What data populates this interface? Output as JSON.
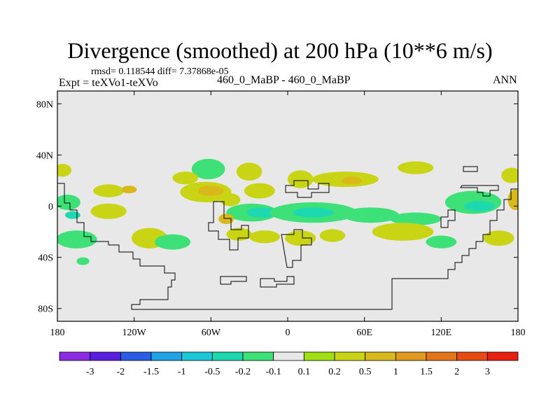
{
  "header": {
    "title": "Divergence (smoothed) at 200 hPa (10**6 m/s)",
    "stats": "rmsd= 0.118544  diff= 7.37868e-05",
    "experiment": "Expt = teXVo1-teXVo",
    "case": "460_0_MaBP - 460_0_MaBP",
    "season": "ANN"
  },
  "chart_data": {
    "type": "heatmap",
    "title": "Divergence (smoothed) at 200 hPa (10**6 m/s)",
    "xlabel": "",
    "ylabel": "",
    "xlim": [
      -180,
      180
    ],
    "ylim": [
      -90,
      90
    ],
    "x_ticks": [
      {
        "value": -180,
        "label": "180"
      },
      {
        "value": -120,
        "label": "120W"
      },
      {
        "value": -60,
        "label": "60W"
      },
      {
        "value": 0,
        "label": "0"
      },
      {
        "value": 60,
        "label": "60E"
      },
      {
        "value": 120,
        "label": "120E"
      },
      {
        "value": 180,
        "label": "180"
      }
    ],
    "y_ticks": [
      {
        "value": 80,
        "label": "80N"
      },
      {
        "value": 40,
        "label": "40N"
      },
      {
        "value": 0,
        "label": "0"
      },
      {
        "value": -40,
        "label": "40S"
      },
      {
        "value": -80,
        "label": "80S"
      }
    ],
    "colorbar": {
      "labels": [
        "-3",
        "-2",
        "-1.5",
        "-1",
        "-0.5",
        "-0.2",
        "-0.1",
        "0.1",
        "0.2",
        "0.5",
        "1",
        "1.5",
        "2",
        "3"
      ],
      "colors": [
        "#8a2be2",
        "#5a1ee0",
        "#2a5ce6",
        "#1fa3e6",
        "#1cc8d8",
        "#1ed8b0",
        "#3ee078",
        "#e8e8e8",
        "#9ee012",
        "#c8d414",
        "#d8b81a",
        "#e09a20",
        "#e47418",
        "#e84a14",
        "#e82010"
      ]
    },
    "fields": [
      {
        "lon": -176,
        "lat": 28,
        "rx": 7,
        "ry": 5,
        "value": 0.2
      },
      {
        "lon": -172,
        "lat": 3,
        "rx": 10,
        "ry": 6,
        "value": -0.2
      },
      {
        "lon": -168,
        "lat": -7,
        "rx": 6,
        "ry": 3,
        "value": -0.5
      },
      {
        "lon": -140,
        "lat": 12,
        "rx": 12,
        "ry": 5,
        "value": 0.2
      },
      {
        "lon": -124,
        "lat": 13,
        "rx": 6,
        "ry": 3,
        "value": 0.5
      },
      {
        "lon": -140,
        "lat": -4,
        "rx": 14,
        "ry": 6,
        "value": 0.2
      },
      {
        "lon": -165,
        "lat": -26,
        "rx": 16,
        "ry": 7,
        "value": -0.2
      },
      {
        "lon": -160,
        "lat": -43,
        "rx": 5,
        "ry": 3,
        "value": -0.2
      },
      {
        "lon": -108,
        "lat": -25,
        "rx": 14,
        "ry": 8,
        "value": 0.2
      },
      {
        "lon": -90,
        "lat": -28,
        "rx": 14,
        "ry": 6,
        "value": -0.2
      },
      {
        "lon": -62,
        "lat": 29,
        "rx": 13,
        "ry": 8,
        "value": -0.2
      },
      {
        "lon": -80,
        "lat": 22,
        "rx": 10,
        "ry": 5,
        "value": 0.2
      },
      {
        "lon": -64,
        "lat": 11,
        "rx": 20,
        "ry": 8,
        "value": 0.2
      },
      {
        "lon": -60,
        "lat": 12,
        "rx": 10,
        "ry": 4,
        "value": 0.5
      },
      {
        "lon": -30,
        "lat": 27,
        "rx": 10,
        "ry": 7,
        "value": 0.2
      },
      {
        "lon": -22,
        "lat": 12,
        "rx": 12,
        "ry": 6,
        "value": 0.2
      },
      {
        "lon": -45,
        "lat": 5,
        "rx": 8,
        "ry": 5,
        "value": 0.2
      },
      {
        "lon": -28,
        "lat": -5,
        "rx": 20,
        "ry": 7,
        "value": -0.2
      },
      {
        "lon": -20,
        "lat": -5,
        "rx": 12,
        "ry": 4,
        "value": -0.5
      },
      {
        "lon": -48,
        "lat": -10,
        "rx": 6,
        "ry": 4,
        "value": 0.5
      },
      {
        "lon": -38,
        "lat": -22,
        "rx": 10,
        "ry": 5,
        "value": 0.2
      },
      {
        "lon": -18,
        "lat": -24,
        "rx": 12,
        "ry": 5,
        "value": 0.2
      },
      {
        "lon": 10,
        "lat": 21,
        "rx": 10,
        "ry": 7,
        "value": 0.2
      },
      {
        "lon": 45,
        "lat": 21,
        "rx": 26,
        "ry": 6,
        "value": 0.2
      },
      {
        "lon": 50,
        "lat": 20,
        "rx": 8,
        "ry": 3,
        "value": 0.5
      },
      {
        "lon": 20,
        "lat": -5,
        "rx": 34,
        "ry": 8,
        "value": -0.2
      },
      {
        "lon": 20,
        "lat": -5,
        "rx": 16,
        "ry": 4,
        "value": -0.5
      },
      {
        "lon": 65,
        "lat": -7,
        "rx": 22,
        "ry": 6,
        "value": -0.2
      },
      {
        "lon": 100,
        "lat": -10,
        "rx": 20,
        "ry": 5,
        "value": -0.2
      },
      {
        "lon": 10,
        "lat": -25,
        "rx": 12,
        "ry": 6,
        "value": 0.2
      },
      {
        "lon": 35,
        "lat": -23,
        "rx": 10,
        "ry": 5,
        "value": 0.2
      },
      {
        "lon": 90,
        "lat": -20,
        "rx": 24,
        "ry": 7,
        "value": 0.2
      },
      {
        "lon": 120,
        "lat": -28,
        "rx": 12,
        "ry": 5,
        "value": -0.2
      },
      {
        "lon": 100,
        "lat": 30,
        "rx": 14,
        "ry": 5,
        "value": 0.2
      },
      {
        "lon": 145,
        "lat": 3,
        "rx": 22,
        "ry": 9,
        "value": -0.2
      },
      {
        "lon": 150,
        "lat": 0,
        "rx": 12,
        "ry": 4,
        "value": -0.5
      },
      {
        "lon": 175,
        "lat": 24,
        "rx": 8,
        "ry": 6,
        "value": 0.2
      },
      {
        "lon": 178,
        "lat": 5,
        "rx": 6,
        "ry": 8,
        "value": 0.5
      },
      {
        "lon": 165,
        "lat": -25,
        "rx": 12,
        "ry": 6,
        "value": 0.2
      }
    ]
  }
}
